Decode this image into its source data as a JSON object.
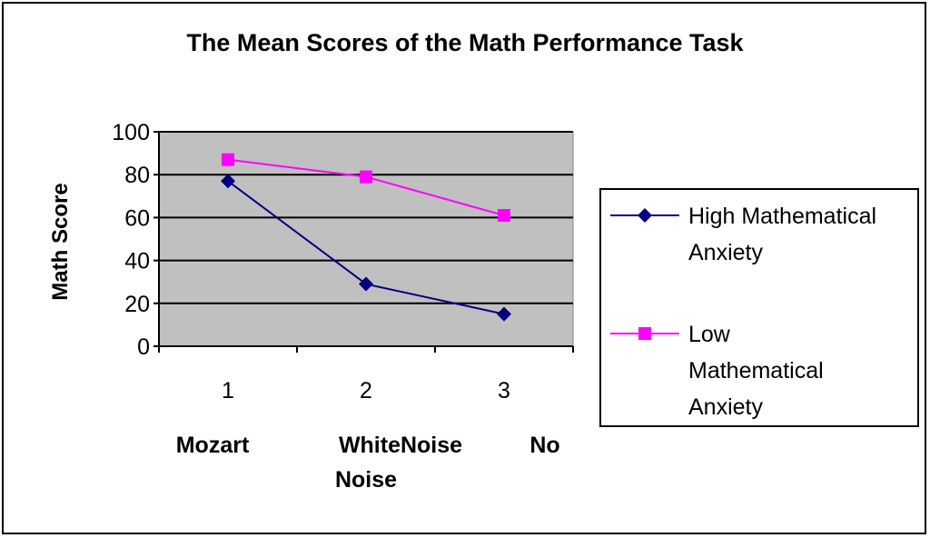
{
  "chart_data": {
    "type": "line",
    "title": "The Mean Scores of the Math Performance Task",
    "xlabel": "",
    "ylabel": "Math Score",
    "x": [
      "1",
      "2",
      "3"
    ],
    "category_labels": [
      [
        "Mozart"
      ],
      [
        "WhiteNoise",
        "Noise"
      ],
      [
        "No"
      ]
    ],
    "ylim": [
      0,
      100
    ],
    "y_ticks": [
      "0",
      "20",
      "40",
      "60",
      "80",
      "100"
    ],
    "grid": true,
    "legend_position": "right",
    "plot_background": "#c0c0c0",
    "series": [
      {
        "name": "High Mathematical Anxiety",
        "name_lines": [
          "High Mathematical",
          "Anxiety"
        ],
        "values": [
          77,
          29,
          15
        ],
        "color": "#000080",
        "marker": "diamond"
      },
      {
        "name": "Low Mathematical Anxiety",
        "name_lines": [
          "Low",
          "Mathematical",
          "Anxiety"
        ],
        "values": [
          87,
          79,
          61
        ],
        "color": "#ff00ff",
        "marker": "square"
      }
    ]
  }
}
